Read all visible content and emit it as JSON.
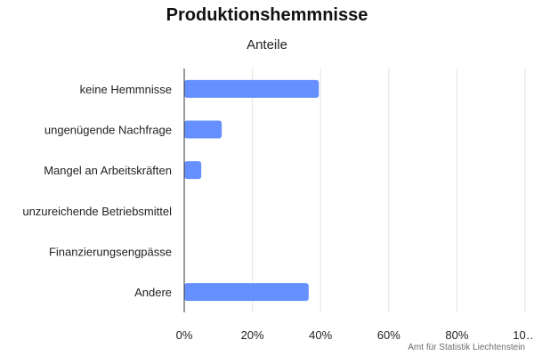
{
  "chart_data": {
    "type": "bar",
    "orientation": "horizontal",
    "title": "Produktionshemmnisse",
    "subtitle": "Anteile",
    "categories": [
      "keine Hemmnisse",
      "ungenügende Nachfrage",
      "Mangel an Arbeitskräften",
      "unzureichende Betriebsmittel",
      "Finanzierungsengpässe",
      "Andere"
    ],
    "values": [
      39.5,
      11,
      5,
      0,
      0,
      36.5
    ],
    "xlim": [
      0,
      100
    ],
    "xticks": [
      "0%",
      "20%",
      "40%",
      "60%",
      "80%",
      "10…"
    ],
    "grid": true,
    "bar_color": "#6690ff"
  },
  "credit": "Amt für Statistik Liechtenstein"
}
